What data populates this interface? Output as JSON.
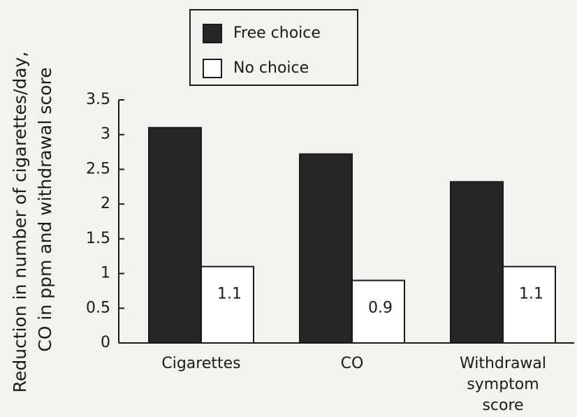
{
  "chart_data": {
    "type": "bar",
    "y_label": [
      "Reduction in number of cigarettes/day,",
      "CO in ppm and withdrawal score"
    ],
    "categories": [
      "Cigarettes",
      "CO",
      "Withdrawal symptom score"
    ],
    "series": [
      {
        "name": "Free choice",
        "color": "#262626",
        "values": [
          3.1,
          2.72,
          2.32
        ],
        "data_labels": false
      },
      {
        "name": "No choice",
        "color": "#ffffff",
        "values": [
          1.1,
          0.9,
          1.1
        ],
        "data_labels": true
      }
    ],
    "ylim": [
      0,
      3.5
    ],
    "yticks": [
      0,
      0.5,
      1,
      1.5,
      2,
      2.5,
      3,
      3.5
    ],
    "grid": false,
    "legend": "top"
  }
}
